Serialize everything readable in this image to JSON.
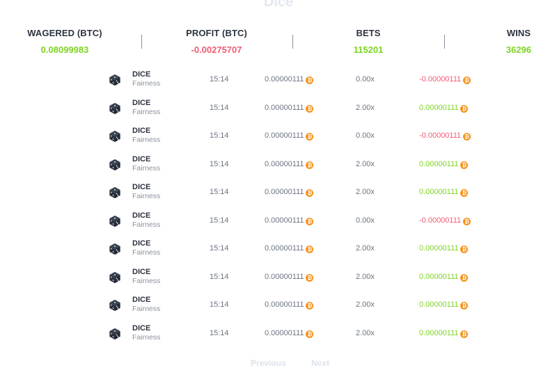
{
  "page_title": "Dice",
  "stats": [
    {
      "label": "WAGERED (BTC)",
      "value": "0.08099983",
      "color": "#7ed321"
    },
    {
      "label": "PROFIT (BTC)",
      "value": "-0.00275707",
      "color": "#f05b72"
    },
    {
      "label": "BETS",
      "value": "115201",
      "color": "#7ed321"
    },
    {
      "label": "WINS",
      "value": "36296",
      "color": "#7ed321"
    }
  ],
  "currency_icon": "bitcoin-icon",
  "game_icon": "dice-icon",
  "bets": [
    {
      "game": "DICE",
      "fairness": "Fairness",
      "time": "15:14",
      "amount": "0.00000111",
      "multiplier": "0.00x",
      "profit": "-0.00000111",
      "win": false
    },
    {
      "game": "DICE",
      "fairness": "Fairness",
      "time": "15:14",
      "amount": "0.00000111",
      "multiplier": "2.00x",
      "profit": "0.00000111",
      "win": true
    },
    {
      "game": "DICE",
      "fairness": "Fairness",
      "time": "15:14",
      "amount": "0.00000111",
      "multiplier": "0.00x",
      "profit": "-0.00000111",
      "win": false
    },
    {
      "game": "DICE",
      "fairness": "Fairness",
      "time": "15:14",
      "amount": "0.00000111",
      "multiplier": "2.00x",
      "profit": "0.00000111",
      "win": true
    },
    {
      "game": "DICE",
      "fairness": "Fairness",
      "time": "15:14",
      "amount": "0.00000111",
      "multiplier": "2.00x",
      "profit": "0.00000111",
      "win": true
    },
    {
      "game": "DICE",
      "fairness": "Fairness",
      "time": "15:14",
      "amount": "0.00000111",
      "multiplier": "0.00x",
      "profit": "-0.00000111",
      "win": false
    },
    {
      "game": "DICE",
      "fairness": "Fairness",
      "time": "15:14",
      "amount": "0.00000111",
      "multiplier": "2.00x",
      "profit": "0.00000111",
      "win": true
    },
    {
      "game": "DICE",
      "fairness": "Fairness",
      "time": "15:14",
      "amount": "0.00000111",
      "multiplier": "2.00x",
      "profit": "0.00000111",
      "win": true
    },
    {
      "game": "DICE",
      "fairness": "Fairness",
      "time": "15:14",
      "amount": "0.00000111",
      "multiplier": "2.00x",
      "profit": "0.00000111",
      "win": true
    },
    {
      "game": "DICE",
      "fairness": "Fairness",
      "time": "15:14",
      "amount": "0.00000111",
      "multiplier": "2.00x",
      "profit": "0.00000111",
      "win": true
    }
  ],
  "pagination": {
    "previous": "Previous",
    "next": "Next"
  }
}
